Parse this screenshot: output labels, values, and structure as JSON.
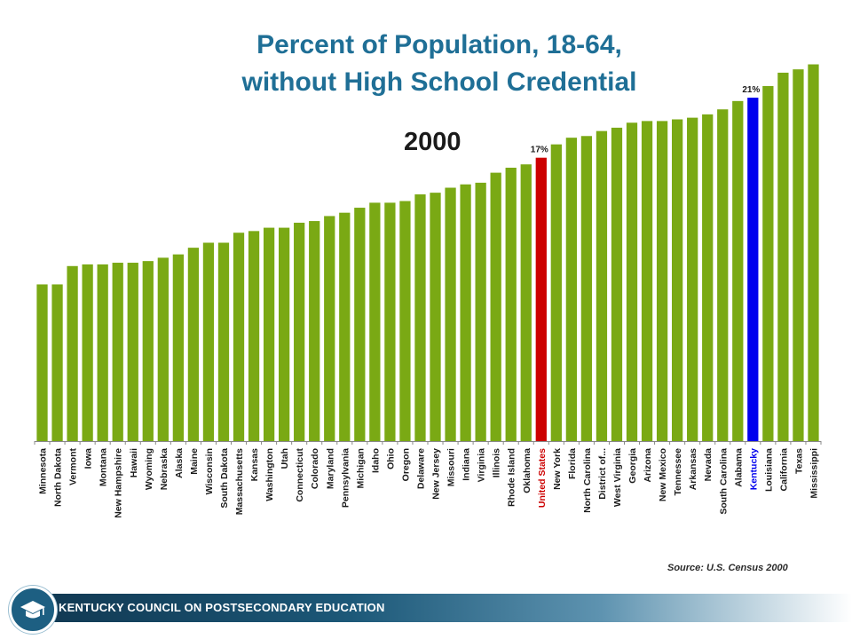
{
  "title_line1": "Percent of Population, 18-64,",
  "title_line2": "without High School Credential",
  "year": "2000",
  "source": "Source:  U.S. Census 2000",
  "footer": "KENTUCKY COUNCIL ON POSTSECONDARY EDUCATION",
  "colors": {
    "bar": "#7aa914",
    "united_states": "#cc0000",
    "kentucky": "#0000ee",
    "title": "#1f6f96"
  },
  "chart_data": {
    "type": "bar",
    "title": "Percent of Population, 18-64, without High School Credential",
    "subtitle": "2000",
    "xlabel": "",
    "ylabel": "",
    "ylim": [
      0,
      23
    ],
    "grid": false,
    "categories": [
      "Minnesota",
      "North Dakota",
      "Vermont",
      "Iowa",
      "Montana",
      "New Hampshire",
      "Hawaii",
      "Wyoming",
      "Nebraska",
      "Alaska",
      "Maine",
      "Wisconsin",
      "South Dakota",
      "Massachusetts",
      "Kansas",
      "Washington",
      "Utah",
      "Connecticut",
      "Colorado",
      "Maryland",
      "Pennsylvania",
      "Michigan",
      "Idaho",
      "Ohio",
      "Oregon",
      "Delaware",
      "New Jersey",
      "Missouri",
      "Indiana",
      "Virginia",
      "Illinois",
      "Rhode Island",
      "Oklahoma",
      "United States",
      "New York",
      "Florida",
      "North Carolina",
      "District of...",
      "West Virginia",
      "Georgia",
      "Arizona",
      "New Mexico",
      "Tennessee",
      "Arkansas",
      "Nevada",
      "South Carolina",
      "Alabama",
      "Kentucky",
      "Louisiana",
      "California",
      "Texas",
      "Mississippi"
    ],
    "values": [
      9.4,
      9.4,
      10.5,
      10.6,
      10.6,
      10.7,
      10.7,
      10.8,
      11.0,
      11.2,
      11.6,
      11.9,
      11.9,
      12.5,
      12.6,
      12.8,
      12.8,
      13.1,
      13.2,
      13.5,
      13.7,
      14.0,
      14.3,
      14.3,
      14.4,
      14.8,
      14.9,
      15.2,
      15.4,
      15.5,
      16.1,
      16.4,
      16.6,
      17.0,
      17.8,
      18.2,
      18.3,
      18.6,
      18.8,
      19.1,
      19.2,
      19.2,
      19.3,
      19.4,
      19.6,
      19.9,
      20.4,
      20.6,
      21.3,
      22.1,
      22.3,
      22.6
    ],
    "data_labels": [
      {
        "category": "United States",
        "text": "17%"
      },
      {
        "category": "Kentucky",
        "text": "21%"
      }
    ],
    "highlight": {
      "United States": "#cc0000",
      "Kentucky": "#0000ee"
    }
  }
}
